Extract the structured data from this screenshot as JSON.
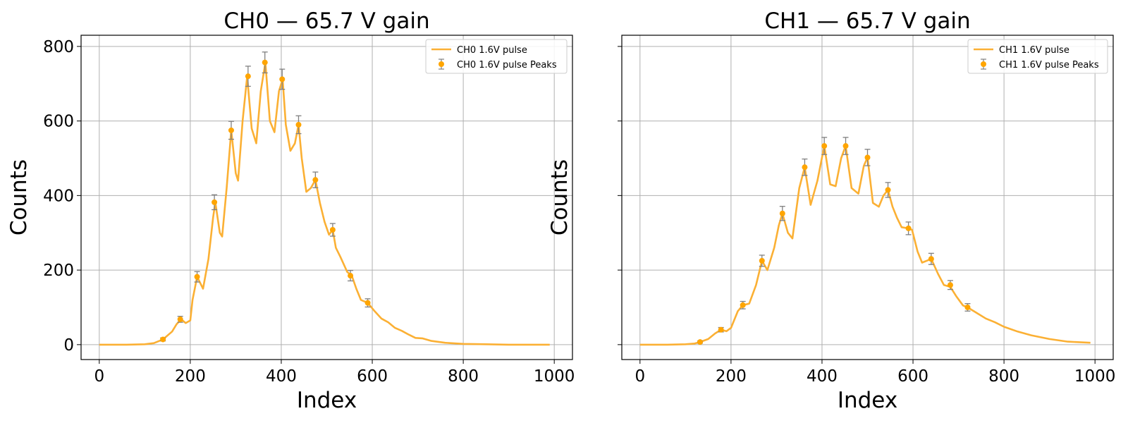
{
  "colors": {
    "line": "#fbb034",
    "marker": "#ffa500",
    "errorbar": "#808080",
    "grid": "#b0b0b0"
  },
  "chart_data": [
    {
      "type": "line",
      "title": "CH0 — 65.7 V gain",
      "xlabel": "Index",
      "ylabel": "Counts",
      "xlim": [
        -40,
        1040
      ],
      "ylim": [
        -40,
        830
      ],
      "xticks": [
        0,
        200,
        400,
        600,
        800,
        1000
      ],
      "yticks": [
        0,
        200,
        400,
        600,
        800
      ],
      "grid": true,
      "legend_position": "top-right",
      "series": [
        {
          "name": "CH0 1.6V pulse",
          "kind": "line",
          "x": [
            0,
            60,
            100,
            120,
            140,
            160,
            170,
            180,
            190,
            200,
            205,
            215,
            228,
            240,
            250,
            255,
            265,
            270,
            280,
            290,
            300,
            305,
            315,
            325,
            335,
            345,
            355,
            365,
            375,
            385,
            395,
            403,
            410,
            420,
            430,
            438,
            445,
            455,
            465,
            475,
            485,
            495,
            505,
            513,
            520,
            530,
            545,
            555,
            565,
            575,
            590,
            605,
            620,
            635,
            650,
            665,
            680,
            695,
            710,
            730,
            760,
            800,
            850,
            900,
            990
          ],
          "y": [
            0,
            0,
            1,
            4,
            14,
            35,
            55,
            68,
            58,
            65,
            120,
            182,
            150,
            230,
            340,
            382,
            300,
            290,
            420,
            575,
            460,
            440,
            600,
            720,
            580,
            540,
            680,
            757,
            600,
            570,
            680,
            712,
            590,
            520,
            540,
            590,
            500,
            410,
            420,
            442,
            380,
            330,
            295,
            308,
            260,
            235,
            195,
            185,
            150,
            120,
            112,
            90,
            70,
            60,
            45,
            37,
            27,
            18,
            17,
            10,
            5,
            2,
            1,
            0,
            0
          ]
        },
        {
          "name": "CH0 1.6V pulse Peaks",
          "kind": "errorbar",
          "x": [
            140,
            178,
            215,
            253,
            290,
            327,
            364,
            402,
            438,
            475,
            513,
            552,
            590
          ],
          "y": [
            14,
            68,
            182,
            382,
            575,
            720,
            757,
            712,
            590,
            442,
            308,
            185,
            112
          ],
          "err": [
            4,
            8,
            14,
            20,
            24,
            27,
            28,
            27,
            24,
            21,
            17,
            14,
            11
          ]
        }
      ]
    },
    {
      "type": "line",
      "title": "CH1 — 65.7 V gain",
      "xlabel": "Index",
      "ylabel": "Counts",
      "xlim": [
        -40,
        1040
      ],
      "ylim": [
        -40,
        830
      ],
      "xticks": [
        0,
        200,
        400,
        600,
        800,
        1000
      ],
      "yticks": [
        0,
        200,
        400,
        600,
        800
      ],
      "grid": true,
      "legend_position": "top-right",
      "series": [
        {
          "name": "CH1 1.6V pulse",
          "kind": "line",
          "x": [
            0,
            60,
            100,
            120,
            132,
            150,
            165,
            178,
            190,
            200,
            215,
            226,
            240,
            255,
            268,
            280,
            295,
            305,
            313,
            325,
            335,
            350,
            362,
            375,
            390,
            405,
            418,
            430,
            442,
            452,
            465,
            480,
            492,
            500,
            512,
            525,
            535,
            545,
            555,
            565,
            575,
            590,
            598,
            610,
            620,
            630,
            640,
            655,
            668,
            682,
            695,
            710,
            720,
            740,
            760,
            780,
            800,
            830,
            860,
            900,
            940,
            990
          ],
          "y": [
            0,
            0,
            1,
            3,
            7,
            15,
            30,
            40,
            36,
            45,
            90,
            106,
            110,
            160,
            225,
            200,
            260,
            320,
            352,
            300,
            285,
            420,
            476,
            375,
            440,
            533,
            430,
            425,
            500,
            533,
            420,
            405,
            480,
            502,
            380,
            370,
            400,
            415,
            370,
            340,
            315,
            312,
            308,
            250,
            220,
            225,
            230,
            190,
            160,
            155,
            130,
            105,
            100,
            85,
            70,
            60,
            48,
            35,
            25,
            15,
            8,
            5
          ]
        },
        {
          "name": "CH1 1.6V pulse Peaks",
          "kind": "errorbar",
          "x": [
            132,
            178,
            226,
            268,
            313,
            362,
            405,
            452,
            500,
            545,
            590,
            640,
            682,
            720
          ],
          "y": [
            7,
            40,
            106,
            225,
            352,
            476,
            533,
            533,
            502,
            415,
            312,
            230,
            160,
            100
          ],
          "err": [
            3,
            6,
            10,
            15,
            19,
            22,
            23,
            23,
            22,
            20,
            17,
            15,
            12,
            10
          ]
        }
      ]
    }
  ]
}
